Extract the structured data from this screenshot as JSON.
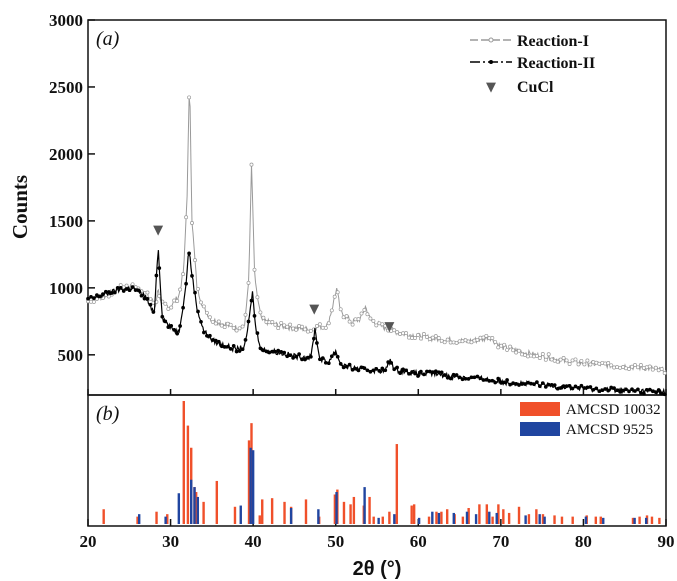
{
  "chart_data": [
    {
      "type": "line",
      "panel_label": "(a)",
      "xlabel": "2θ (°)",
      "ylabel": "Counts",
      "xlim": [
        20,
        90
      ],
      "ylim": [
        200,
        3000
      ],
      "x_ticks": [
        20,
        30,
        40,
        50,
        60,
        70,
        80,
        90
      ],
      "y_ticks": [
        500,
        1000,
        1500,
        2000,
        2500,
        3000
      ],
      "legend_position": "top-right",
      "series": [
        {
          "name": "Reaction-I",
          "color": "#9a9a9a",
          "points": [
            [
              20,
              900
            ],
            [
              22,
              940
            ],
            [
              24,
              1000
            ],
            [
              25.5,
              1010
            ],
            [
              27,
              960
            ],
            [
              28.2,
              870
            ],
            [
              28.5,
              1010
            ],
            [
              28.8,
              880
            ],
            [
              30,
              860
            ],
            [
              31,
              940
            ],
            [
              31.6,
              1130
            ],
            [
              32.0,
              1700
            ],
            [
              32.3,
              2580
            ],
            [
              32.6,
              1500
            ],
            [
              33.2,
              1000
            ],
            [
              34,
              850
            ],
            [
              35,
              760
            ],
            [
              36,
              740
            ],
            [
              37,
              720
            ],
            [
              38,
              700
            ],
            [
              39,
              720
            ],
            [
              39.5,
              1100
            ],
            [
              39.8,
              1920
            ],
            [
              40.2,
              1050
            ],
            [
              41,
              760
            ],
            [
              43,
              720
            ],
            [
              45,
              700
            ],
            [
              47,
              690
            ],
            [
              48,
              710
            ],
            [
              49,
              720
            ],
            [
              49.7,
              880
            ],
            [
              50.1,
              1000
            ],
            [
              50.6,
              820
            ],
            [
              52,
              740
            ],
            [
              53,
              770
            ],
            [
              53.6,
              860
            ],
            [
              54.2,
              760
            ],
            [
              56,
              700
            ],
            [
              58,
              660
            ],
            [
              60,
              640
            ],
            [
              62,
              620
            ],
            [
              64,
              610
            ],
            [
              66,
              600
            ],
            [
              68,
              620
            ],
            [
              68.5,
              640
            ],
            [
              70,
              560
            ],
            [
              72,
              530
            ],
            [
              74,
              500
            ],
            [
              76,
              480
            ],
            [
              78,
              450
            ],
            [
              80,
              440
            ],
            [
              82,
              430
            ],
            [
              84,
              420
            ],
            [
              86,
              410
            ],
            [
              88,
              400
            ],
            [
              90,
              380
            ]
          ]
        },
        {
          "name": "Reaction-II",
          "color": "#000000",
          "points": [
            [
              20,
              910
            ],
            [
              22,
              950
            ],
            [
              24,
              990
            ],
            [
              25.5,
              1000
            ],
            [
              27,
              930
            ],
            [
              28.0,
              800
            ],
            [
              28.5,
              1310
            ],
            [
              29.0,
              780
            ],
            [
              30,
              700
            ],
            [
              31,
              670
            ],
            [
              31.8,
              980
            ],
            [
              32.2,
              1290
            ],
            [
              32.6,
              1100
            ],
            [
              33.2,
              850
            ],
            [
              34,
              680
            ],
            [
              35,
              610
            ],
            [
              36,
              580
            ],
            [
              37,
              560
            ],
            [
              38,
              540
            ],
            [
              39,
              560
            ],
            [
              39.6,
              800
            ],
            [
              39.9,
              980
            ],
            [
              40.3,
              700
            ],
            [
              41,
              540
            ],
            [
              43,
              520
            ],
            [
              45,
              490
            ],
            [
              47,
              480
            ],
            [
              47.5,
              700
            ],
            [
              48,
              480
            ],
            [
              49,
              440
            ],
            [
              50,
              530
            ],
            [
              50.6,
              430
            ],
            [
              52,
              400
            ],
            [
              54,
              390
            ],
            [
              56,
              380
            ],
            [
              56.6,
              460
            ],
            [
              57.2,
              390
            ],
            [
              60,
              360
            ],
            [
              62,
              360
            ],
            [
              64,
              340
            ],
            [
              66,
              330
            ],
            [
              68,
              320
            ],
            [
              70,
              300
            ],
            [
              72,
              290
            ],
            [
              74,
              280
            ],
            [
              76,
              270
            ],
            [
              78,
              260
            ],
            [
              80,
              250
            ],
            [
              82,
              240
            ],
            [
              84,
              240
            ],
            [
              86,
              230
            ],
            [
              88,
              230
            ],
            [
              90,
              220
            ]
          ]
        }
      ],
      "markers": {
        "name": "CuCl",
        "symbol": "▼",
        "color": "#555555",
        "points": [
          [
            28.5,
            1440
          ],
          [
            47.4,
            850
          ],
          [
            56.5,
            720
          ]
        ]
      }
    },
    {
      "type": "bar",
      "panel_label": "(b)",
      "xlim": [
        20,
        90
      ],
      "ylim": [
        0,
        1
      ],
      "legend_position": "top-right",
      "series": [
        {
          "name": "AMCSD 10032",
          "color": "#f0502a",
          "x": [
            21.9,
            26.0,
            28.3,
            29.6,
            31.6,
            32.1,
            32.5,
            32.9,
            33.1,
            34.0,
            35.6,
            37.8,
            39.5,
            39.8,
            40.8,
            41.1,
            42.3,
            43.8,
            44.6,
            46.4,
            48.0,
            49.9,
            50.2,
            51.0,
            51.8,
            52.2,
            53.4,
            54.1,
            54.6,
            55.7,
            56.5,
            57.4,
            59.2,
            59.5,
            61.3,
            62.2,
            62.8,
            63.5,
            64.4,
            65.4,
            66.1,
            67.4,
            68.3,
            69.0,
            69.7,
            70.3,
            71.0,
            72.2,
            73.4,
            74.3,
            75.1,
            76.5,
            77.4,
            78.7,
            80.4,
            81.5,
            82.1,
            86.0,
            86.8,
            87.7,
            88.3,
            89.2
          ],
          "values": [
            0.12,
            0.06,
            0.1,
            0.08,
            1.0,
            0.8,
            0.62,
            0.3,
            0.26,
            0.18,
            0.35,
            0.14,
            0.68,
            0.82,
            0.07,
            0.2,
            0.21,
            0.18,
            0.14,
            0.2,
            0.06,
            0.24,
            0.28,
            0.18,
            0.16,
            0.22,
            0.15,
            0.22,
            0.06,
            0.06,
            0.1,
            0.65,
            0.15,
            0.16,
            0.06,
            0.1,
            0.1,
            0.12,
            0.08,
            0.06,
            0.13,
            0.16,
            0.16,
            0.06,
            0.16,
            0.12,
            0.09,
            0.14,
            0.08,
            0.12,
            0.08,
            0.07,
            0.06,
            0.06,
            0.07,
            0.06,
            0.06,
            0.05,
            0.06,
            0.07,
            0.06,
            0.05
          ]
        },
        {
          "name": "AMCSD 9525",
          "color": "#2045a0",
          "x": [
            26.2,
            29.4,
            31.0,
            32.5,
            32.9,
            33.3,
            38.5,
            39.7,
            40.0,
            44.6,
            47.9,
            50.1,
            53.5,
            55.2,
            57.1,
            60.1,
            61.7,
            62.5,
            64.3,
            65.9,
            67.0,
            68.6,
            69.5,
            73.0,
            74.7,
            75.3,
            80.3,
            82.4,
            86.2,
            87.6
          ],
          "values": [
            0.08,
            0.06,
            0.25,
            0.36,
            0.3,
            0.22,
            0.15,
            0.62,
            0.6,
            0.13,
            0.12,
            0.26,
            0.3,
            0.05,
            0.08,
            0.05,
            0.1,
            0.09,
            0.09,
            0.1,
            0.08,
            0.1,
            0.09,
            0.07,
            0.08,
            0.06,
            0.06,
            0.05,
            0.05,
            0.05
          ]
        }
      ]
    }
  ]
}
